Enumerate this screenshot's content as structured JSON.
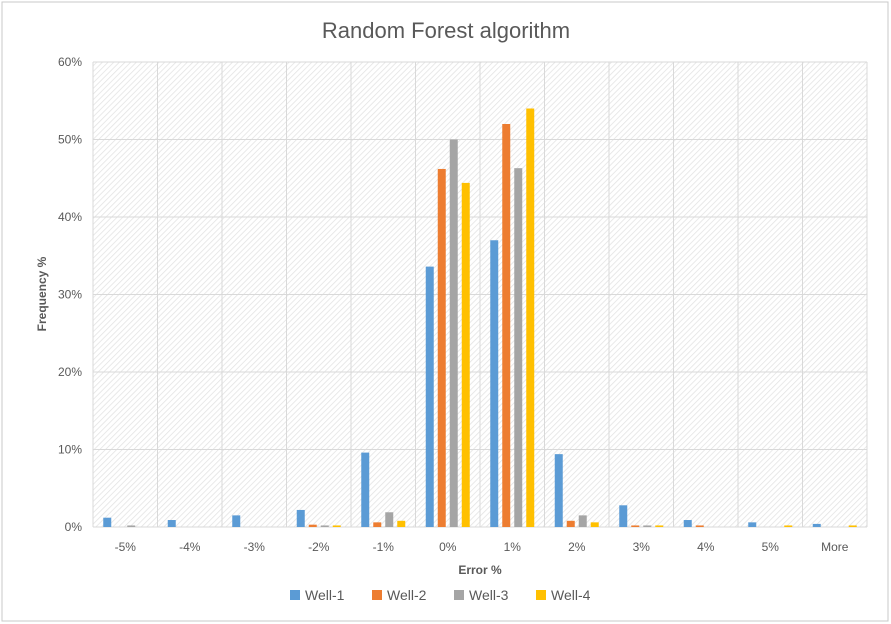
{
  "chart_data": {
    "type": "bar",
    "title": "Random Forest algorithm",
    "xlabel": "Error %",
    "ylabel": "Frequency %",
    "categories": [
      "-5%",
      "-4%",
      "-3%",
      "-2%",
      "-1%",
      "0%",
      "1%",
      "2%",
      "3%",
      "4%",
      "5%",
      "More"
    ],
    "ylim": [
      0,
      60
    ],
    "yticks": [
      "0%",
      "10%",
      "20%",
      "30%",
      "40%",
      "50%",
      "60%"
    ],
    "grid": true,
    "legend_position": "bottom",
    "series": [
      {
        "name": "Well-1",
        "color": "#5B9BD5",
        "values": [
          1.2,
          0.9,
          1.5,
          2.2,
          9.6,
          33.6,
          37.0,
          9.4,
          2.8,
          0.9,
          0.6,
          0.4
        ]
      },
      {
        "name": "Well-2",
        "color": "#ED7D31",
        "values": [
          0.0,
          0.0,
          0.0,
          0.3,
          0.6,
          46.2,
          52.0,
          0.8,
          0.2,
          0.2,
          0.0,
          0.0
        ]
      },
      {
        "name": "Well-3",
        "color": "#A5A5A5",
        "values": [
          0.2,
          0.0,
          0.0,
          0.2,
          1.9,
          50.0,
          46.3,
          1.5,
          0.2,
          0.0,
          0.0,
          0.0
        ]
      },
      {
        "name": "Well-4",
        "color": "#FFC000",
        "values": [
          0.0,
          0.0,
          0.0,
          0.2,
          0.8,
          44.4,
          54.0,
          0.6,
          0.2,
          0.0,
          0.2,
          0.2
        ]
      }
    ]
  }
}
